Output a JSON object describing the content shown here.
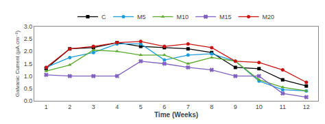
{
  "chart_data": {
    "type": "line",
    "x": [
      1,
      2,
      3,
      4,
      5,
      6,
      7,
      8,
      9,
      10,
      11,
      12
    ],
    "series": [
      {
        "name": "C",
        "color": "#000000",
        "marker": "square",
        "values": [
          1.3,
          2.1,
          2.15,
          2.35,
          2.2,
          2.15,
          2.1,
          1.95,
          1.35,
          1.3,
          0.85,
          0.6
        ]
      },
      {
        "name": "M5",
        "color": "#1b9cdb",
        "marker": "circle",
        "values": [
          1.35,
          1.75,
          1.95,
          2.3,
          2.3,
          1.65,
          1.85,
          1.9,
          1.6,
          0.8,
          0.45,
          0.4
        ]
      },
      {
        "name": "M10",
        "color": "#5aaa2a",
        "marker": "triangle-up",
        "values": [
          1.2,
          1.45,
          2.05,
          2.0,
          1.85,
          1.85,
          1.5,
          1.75,
          1.6,
          0.85,
          0.55,
          0.4
        ]
      },
      {
        "name": "M15",
        "color": "#8060c0",
        "marker": "x",
        "values": [
          1.05,
          1.0,
          1.0,
          1.0,
          1.6,
          1.5,
          1.35,
          1.25,
          1.0,
          1.0,
          0.3,
          0.15
        ]
      },
      {
        "name": "M20",
        "color": "#cc1111",
        "marker": "circle",
        "values": [
          1.35,
          2.1,
          2.2,
          2.35,
          2.4,
          2.2,
          2.3,
          2.15,
          1.6,
          1.55,
          1.25,
          0.75
        ]
      }
    ],
    "xlabel": "Time (Weeks)",
    "ylabel": "Galvanic Current (μA.cm⁻²)",
    "xlim": [
      0.5,
      12.5
    ],
    "ylim": [
      0,
      3.0
    ],
    "xticks": [
      1,
      2,
      3,
      4,
      5,
      6,
      7,
      8,
      9,
      10,
      11,
      12
    ],
    "yticks": [
      {
        "value": 0,
        "label": "0.0"
      },
      0.5,
      {
        "value": 1.0,
        "label": "1.0"
      },
      1.5,
      {
        "value": 2.0,
        "label": "2.0"
      },
      2.5,
      {
        "value": 3.0,
        "label": "3.0"
      }
    ],
    "grid": false,
    "legend": "top"
  }
}
